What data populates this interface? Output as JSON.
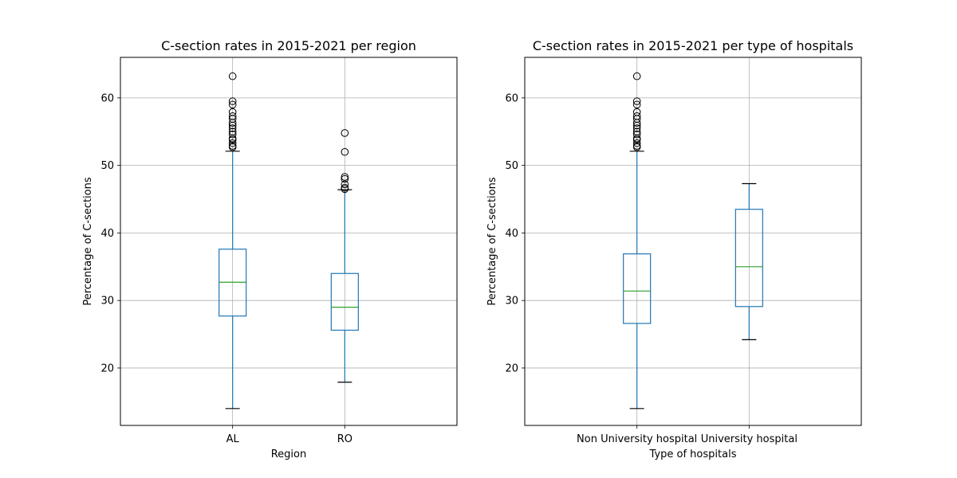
{
  "colors": {
    "box": "#1f77b4",
    "median": "#2ca02c",
    "cap": "#000000",
    "grid": "#b0b0b0",
    "frame": "#000000",
    "flier": "#000000"
  },
  "chart_data": [
    {
      "type": "box",
      "title": "C-section rates in 2015-2021 per region",
      "xlabel": "Region",
      "ylabel": "Percentage of C-sections",
      "ylim": [
        11.5,
        66
      ],
      "yticks": [
        20,
        30,
        40,
        50,
        60
      ],
      "grid": true,
      "categories": [
        "AL",
        "RO"
      ],
      "boxes": [
        {
          "category": "AL",
          "whisker_low": 14.0,
          "q1": 27.7,
          "median": 32.7,
          "q3": 37.6,
          "whisker_high": 52.1,
          "fliers": [
            63.2,
            59.5,
            59.0,
            57.9,
            57.3,
            56.9,
            56.3,
            55.9,
            55.5,
            55.0,
            54.6,
            54.0,
            53.8,
            53.3,
            52.9,
            52.7
          ]
        },
        {
          "category": "RO",
          "whisker_low": 17.9,
          "q1": 25.6,
          "median": 29.0,
          "q3": 34.0,
          "whisker_high": 46.4,
          "fliers": [
            54.8,
            52.0,
            48.3,
            48.0,
            47.2,
            46.7,
            46.5
          ]
        }
      ]
    },
    {
      "type": "box",
      "title": "C-section rates in 2015-2021 per type of hospitals",
      "xlabel": "Type of hospitals",
      "ylabel": "Percentage of C-sections",
      "ylim": [
        11.5,
        66
      ],
      "yticks": [
        20,
        30,
        40,
        50,
        60
      ],
      "grid": true,
      "categories": [
        "Non University hospital",
        "University hospital"
      ],
      "boxes": [
        {
          "category": "Non University hospital",
          "whisker_low": 14.0,
          "q1": 26.6,
          "median": 31.4,
          "q3": 36.9,
          "whisker_high": 52.1,
          "fliers": [
            63.2,
            59.5,
            59.0,
            57.9,
            57.3,
            56.9,
            56.3,
            55.9,
            55.5,
            55.0,
            54.6,
            54.0,
            53.8,
            53.3,
            52.9,
            52.7
          ]
        },
        {
          "category": "University hospital",
          "whisker_low": 24.2,
          "q1": 29.1,
          "median": 35.0,
          "q3": 43.5,
          "whisker_high": 47.3,
          "fliers": []
        }
      ]
    }
  ]
}
